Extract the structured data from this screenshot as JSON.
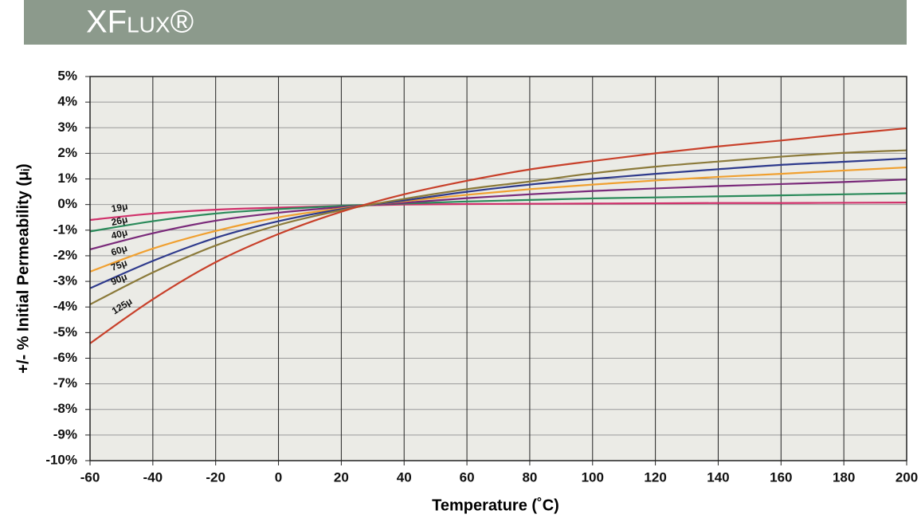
{
  "chart_data": {
    "type": "line",
    "title": "XFlux®",
    "xlabel": "Temperature (˚C)",
    "ylabel": "+/- % Initial Permeability (μᵢ)",
    "x": [
      -60,
      -40,
      -20,
      0,
      20,
      40,
      60,
      80,
      100,
      120,
      140,
      160,
      180,
      200
    ],
    "xlim": [
      -60,
      200
    ],
    "xticks": [
      -60,
      -40,
      -20,
      0,
      20,
      40,
      60,
      80,
      100,
      120,
      140,
      160,
      180,
      200
    ],
    "ylim": [
      -10,
      5
    ],
    "yticks": [
      {
        "value": 5,
        "label": "5%"
      },
      {
        "value": 4,
        "label": "4%"
      },
      {
        "value": 3,
        "label": "3%"
      },
      {
        "value": 2,
        "label": "2%"
      },
      {
        "value": 1,
        "label": "1%"
      },
      {
        "value": 0,
        "label": "0%"
      },
      {
        "value": -1,
        "label": "-1%"
      },
      {
        "value": -2,
        "label": "-2%"
      },
      {
        "value": -3,
        "label": "-3%"
      },
      {
        "value": -4,
        "label": "-4%"
      },
      {
        "value": -5,
        "label": "-5%"
      },
      {
        "value": -6,
        "label": "-6%"
      },
      {
        "value": -7,
        "label": "-7%"
      },
      {
        "value": -8,
        "label": "-8%"
      },
      {
        "value": -9,
        "label": "-9%"
      },
      {
        "value": -10,
        "label": "-10%"
      }
    ],
    "grid": true,
    "series": [
      {
        "name": "19μ",
        "color": "#d0306a",
        "values": [
          -0.6,
          -0.35,
          -0.2,
          -0.12,
          -0.05,
          0.0,
          0.02,
          0.03,
          0.04,
          0.05,
          0.06,
          0.06,
          0.07,
          0.08
        ]
      },
      {
        "name": "26μ",
        "color": "#2a8a5a",
        "values": [
          -1.05,
          -0.65,
          -0.35,
          -0.18,
          -0.05,
          0.04,
          0.12,
          0.18,
          0.24,
          0.28,
          0.32,
          0.36,
          0.4,
          0.44
        ]
      },
      {
        "name": "40μ",
        "color": "#7a2a7a",
        "values": [
          -1.75,
          -1.12,
          -0.63,
          -0.32,
          -0.1,
          0.07,
          0.25,
          0.4,
          0.53,
          0.63,
          0.72,
          0.8,
          0.88,
          0.98
        ]
      },
      {
        "name": "60μ",
        "color": "#f0a030",
        "values": [
          -2.62,
          -1.72,
          -1.03,
          -0.5,
          -0.15,
          0.13,
          0.38,
          0.6,
          0.78,
          0.94,
          1.08,
          1.2,
          1.33,
          1.45
        ]
      },
      {
        "name": "75μ",
        "color": "#2e3a8c",
        "values": [
          -3.27,
          -2.2,
          -1.3,
          -0.65,
          -0.18,
          0.16,
          0.5,
          0.78,
          1.0,
          1.2,
          1.38,
          1.55,
          1.67,
          1.8
        ]
      },
      {
        "name": "90μ",
        "color": "#8b7a3a",
        "values": [
          -3.9,
          -2.65,
          -1.6,
          -0.8,
          -0.22,
          0.22,
          0.6,
          0.9,
          1.22,
          1.48,
          1.68,
          1.87,
          2.02,
          2.12
        ]
      },
      {
        "name": "125μ",
        "color": "#c8402a",
        "values": [
          -5.42,
          -3.7,
          -2.25,
          -1.15,
          -0.28,
          0.4,
          0.93,
          1.37,
          1.7,
          2.0,
          2.27,
          2.5,
          2.75,
          2.98
        ]
      }
    ]
  }
}
